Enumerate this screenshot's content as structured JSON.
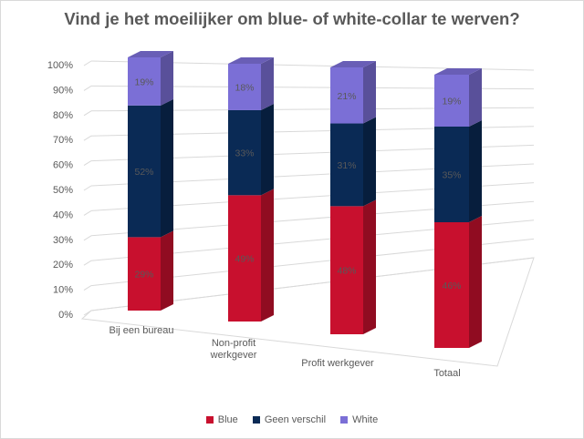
{
  "chart_data": {
    "type": "bar",
    "stacked": true,
    "three_d": true,
    "title": "Vind je het moeilijker om blue- of white-collar te werven?",
    "categories": [
      "Bij een bureau",
      "Non-profit\nwerkgever",
      "Profit werkgever",
      "Totaal"
    ],
    "series": [
      {
        "name": "Blue",
        "color": "#c8102e",
        "values": [
          29,
          49,
          48,
          46
        ],
        "labels": [
          "29%",
          "49%",
          "48%",
          "46%"
        ]
      },
      {
        "name": "Geen verschil",
        "color": "#0a2a55",
        "values": [
          52,
          33,
          31,
          35
        ],
        "labels": [
          "52%",
          "33%",
          "31%",
          "35%"
        ]
      },
      {
        "name": "White",
        "color": "#7b6fd6",
        "values": [
          19,
          18,
          21,
          19
        ],
        "labels": [
          "19%",
          "18%",
          "21%",
          "19%"
        ]
      }
    ],
    "yticks": [
      "0%",
      "10%",
      "20%",
      "30%",
      "40%",
      "50%",
      "60%",
      "70%",
      "80%",
      "90%",
      "100%"
    ],
    "ylim": [
      0,
      100
    ],
    "grid": true,
    "legend": "bottom"
  }
}
